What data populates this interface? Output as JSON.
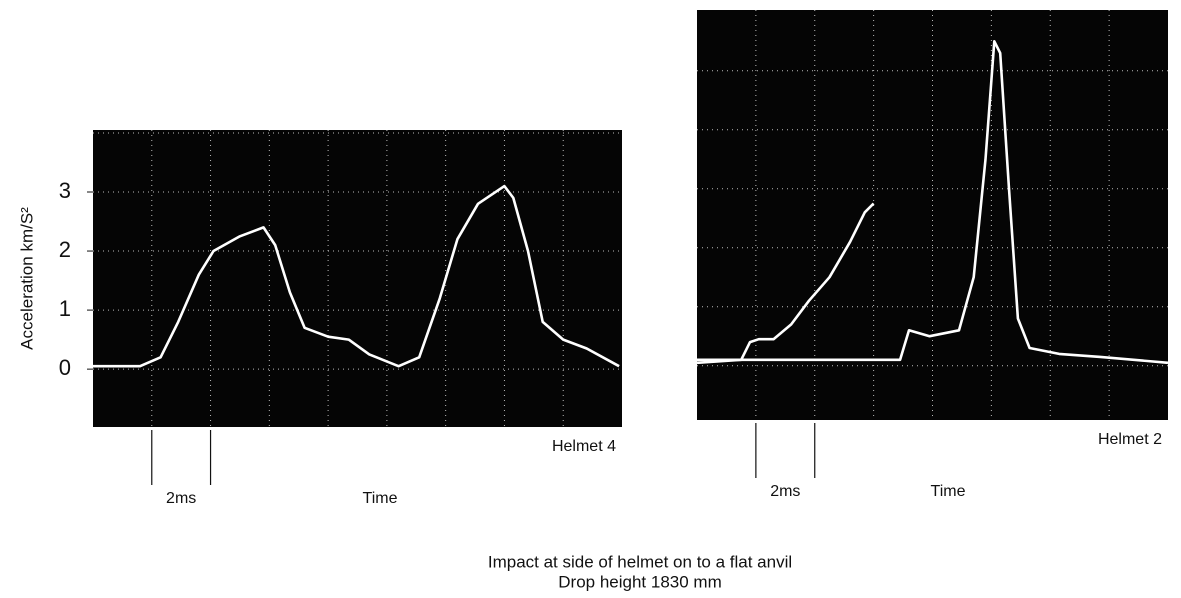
{
  "chart_data": [
    {
      "type": "line",
      "label": "Helmet 4",
      "scale_label": "2ms",
      "xlabel": "Time",
      "ylabel": "Acceleration km/S²",
      "xlim": [
        0,
        18
      ],
      "ylim": [
        -0.98,
        4.05
      ],
      "yticks": [
        0,
        1,
        2,
        3
      ],
      "series": [
        {
          "color": "#ffffff",
          "x": [
            0,
            1.6,
            2.3,
            2.9,
            3.6,
            4.1,
            5.0,
            5.8,
            6.2,
            6.7,
            7.2,
            8.0,
            8.7,
            9.4,
            10.4,
            11.1,
            11.8,
            12.4,
            13.1,
            14.0,
            14.3,
            14.8,
            15.3,
            16.0,
            16.8,
            17.9
          ],
          "values": [
            0.05,
            0.05,
            0.2,
            0.8,
            1.6,
            2.0,
            2.25,
            2.4,
            2.1,
            1.3,
            0.7,
            0.55,
            0.5,
            0.25,
            0.05,
            0.2,
            1.2,
            2.2,
            2.8,
            3.1,
            2.9,
            2.0,
            0.8,
            0.5,
            0.35,
            0.05
          ]
        }
      ]
    },
    {
      "type": "line",
      "label": "Helmet 2",
      "scale_label": "2ms",
      "xlabel": "Time",
      "xlim": [
        0,
        16
      ],
      "ylim": [
        -0.92,
        6.03
      ],
      "series": [
        {
          "color": "#ffffff",
          "x": [
            0,
            1.5,
            1.8,
            2.1,
            2.6,
            3.2,
            3.8,
            4.5,
            5.2,
            5.7,
            6.0
          ],
          "values": [
            0.05,
            0.1,
            0.4,
            0.45,
            0.45,
            0.7,
            1.1,
            1.5,
            2.1,
            2.6,
            2.75
          ]
        },
        {
          "color": "#ffffff",
          "x": [
            0,
            6.9,
            7.2,
            7.9,
            8.9,
            9.4,
            9.8,
            10.1,
            10.3,
            10.6,
            10.9,
            11.3,
            12.3,
            13.7,
            16.0
          ],
          "values": [
            0.1,
            0.1,
            0.6,
            0.5,
            0.6,
            1.5,
            3.5,
            5.5,
            5.3,
            3.0,
            0.8,
            0.3,
            0.2,
            0.15,
            0.05
          ]
        }
      ]
    }
  ],
  "caption": [
    "Impact at side of helmet on to a flat anvil",
    "Drop height 1830 mm"
  ]
}
